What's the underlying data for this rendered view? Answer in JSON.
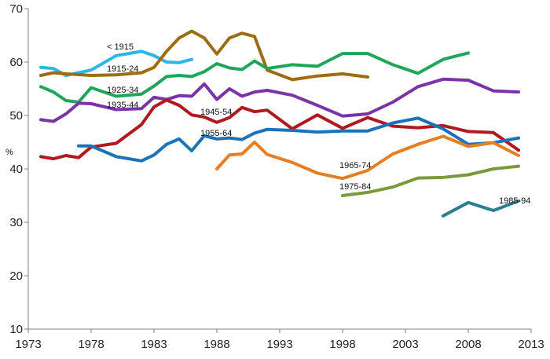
{
  "chart_data": {
    "type": "line",
    "title": "",
    "xlabel": "",
    "ylabel": "%",
    "xlim": [
      1973,
      2013
    ],
    "ylim": [
      10,
      70
    ],
    "x_ticks": [
      1973,
      1978,
      1983,
      1988,
      1993,
      1998,
      2003,
      2008,
      2013
    ],
    "y_ticks": [
      10,
      20,
      30,
      40,
      50,
      60,
      70
    ],
    "grid": false,
    "legend": "none",
    "series": [
      {
        "name": "< 1915",
        "color": "#29b6e8",
        "x": [
          1974,
          1975,
          1976,
          1978,
          1980,
          1982,
          1983,
          1984,
          1985,
          1986
        ],
        "y": [
          59.0,
          58.8,
          57.5,
          58.5,
          61.2,
          62.0,
          61.2,
          60.0,
          59.9,
          60.5
        ]
      },
      {
        "name": "1915-24",
        "color": "#9c6d12",
        "x": [
          1974,
          1975,
          1976,
          1978,
          1980,
          1982,
          1983,
          1984,
          1985,
          1986,
          1987,
          1988,
          1989,
          1990,
          1991,
          1992,
          1994,
          1996,
          1998,
          2000
        ],
        "y": [
          57.5,
          58.0,
          57.8,
          57.5,
          57.6,
          58.0,
          59.0,
          62.0,
          64.5,
          65.8,
          64.5,
          61.5,
          64.5,
          65.4,
          64.8,
          58.5,
          56.7,
          57.4,
          57.8,
          57.2
        ]
      },
      {
        "name": "1925-34",
        "color": "#1fa65a",
        "x": [
          1974,
          1975,
          1976,
          1977,
          1978,
          1980,
          1982,
          1983,
          1984,
          1985,
          1986,
          1987,
          1988,
          1989,
          1990,
          1991,
          1992,
          1994,
          1996,
          1998,
          2000,
          2002,
          2004,
          2006,
          2008
        ],
        "y": [
          55.4,
          54.4,
          52.8,
          52.5,
          55.2,
          53.6,
          54.0,
          55.5,
          57.3,
          57.5,
          57.3,
          58.2,
          59.7,
          58.9,
          58.6,
          60.2,
          58.8,
          59.5,
          59.2,
          61.6,
          61.6,
          59.5,
          57.9,
          60.5,
          61.7
        ]
      },
      {
        "name": "1935-44",
        "color": "#7b33a8",
        "x": [
          1974,
          1975,
          1976,
          1977,
          1978,
          1980,
          1982,
          1983,
          1984,
          1985,
          1986,
          1987,
          1988,
          1989,
          1990,
          1991,
          1992,
          1994,
          1996,
          1998,
          2000,
          2002,
          2004,
          2006,
          2008,
          2010,
          2012
        ],
        "y": [
          49.2,
          48.9,
          50.3,
          52.3,
          52.2,
          51.1,
          51.3,
          53.4,
          53.0,
          53.7,
          53.6,
          55.9,
          53.0,
          55.0,
          53.6,
          54.4,
          54.7,
          53.8,
          51.9,
          49.9,
          50.3,
          52.5,
          55.4,
          56.8,
          56.6,
          54.6,
          54.4
        ]
      },
      {
        "name": "1945-54",
        "color": "#b0191e",
        "x": [
          1974,
          1975,
          1976,
          1977,
          1978,
          1980,
          1982,
          1983,
          1984,
          1985,
          1986,
          1987,
          1988,
          1989,
          1990,
          1991,
          1992,
          1994,
          1996,
          1998,
          2000,
          2002,
          2004,
          2006,
          2008,
          2010,
          2012
        ],
        "y": [
          42.3,
          41.9,
          42.5,
          42.1,
          44.1,
          44.8,
          48.3,
          51.6,
          52.9,
          51.9,
          50.1,
          49.7,
          48.7,
          49.6,
          51.5,
          50.7,
          51.0,
          47.5,
          50.1,
          47.6,
          49.6,
          48.0,
          47.7,
          48.1,
          47.0,
          46.8,
          43.5
        ]
      },
      {
        "name": "1955-64",
        "color": "#1a72b8",
        "x": [
          1977,
          1978,
          1980,
          1982,
          1983,
          1984,
          1985,
          1986,
          1987,
          1988,
          1989,
          1990,
          1991,
          1992,
          1994,
          1996,
          1998,
          2000,
          2002,
          2004,
          2006,
          2008,
          2010,
          2012
        ],
        "y": [
          44.3,
          44.3,
          42.3,
          41.5,
          42.6,
          44.6,
          45.6,
          43.4,
          46.2,
          45.6,
          45.8,
          45.5,
          46.7,
          47.4,
          47.2,
          46.9,
          47.1,
          47.1,
          48.6,
          49.5,
          47.5,
          44.6,
          44.9,
          45.8
        ]
      },
      {
        "name": "1965-74",
        "color": "#e67e22",
        "x": [
          1988,
          1989,
          1990,
          1991,
          1992,
          1994,
          1996,
          1998,
          2000,
          2002,
          2004,
          2006,
          2008,
          2010,
          2012
        ],
        "y": [
          40.0,
          42.6,
          42.8,
          45.0,
          42.7,
          41.2,
          39.2,
          38.2,
          39.7,
          42.8,
          44.6,
          46.1,
          44.2,
          44.9,
          42.5
        ]
      },
      {
        "name": "1975-84",
        "color": "#7a9a3c",
        "x": [
          1998,
          2000,
          2002,
          2004,
          2006,
          2008,
          2010,
          2012
        ],
        "y": [
          35.0,
          35.6,
          36.6,
          38.3,
          38.4,
          38.9,
          40.0,
          40.5
        ]
      },
      {
        "name": "1985-94",
        "color": "#2c7f8e",
        "x": [
          2006,
          2008,
          2010,
          2012
        ],
        "y": [
          31.2,
          33.7,
          32.2,
          34.0
        ]
      }
    ]
  }
}
